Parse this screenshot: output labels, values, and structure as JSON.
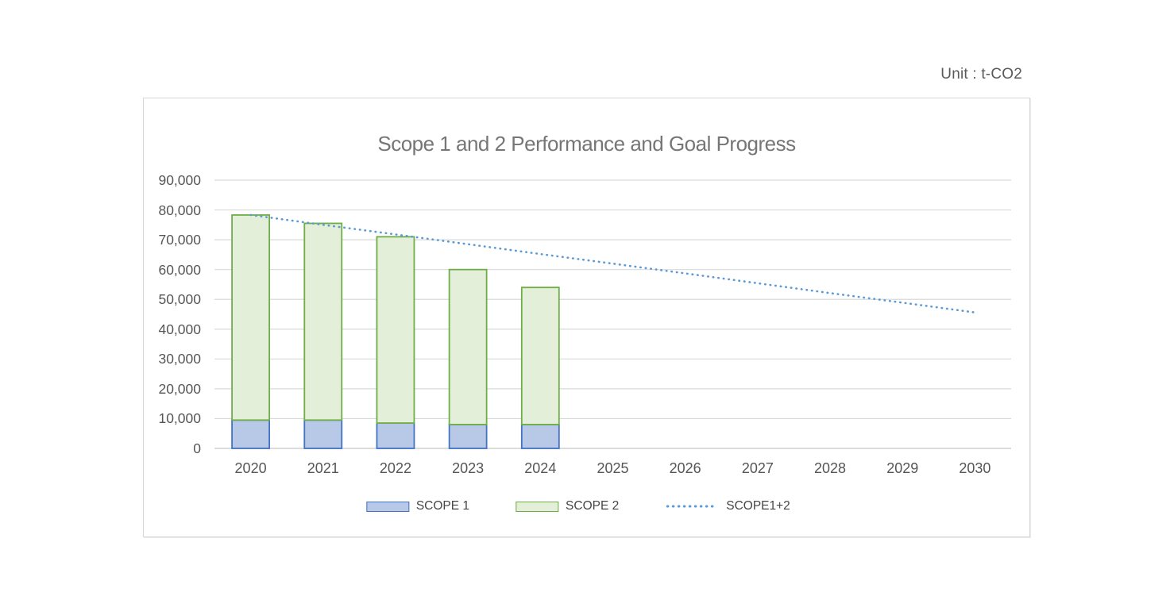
{
  "page": {
    "unit_label": "Unit : t-CO2"
  },
  "chart": {
    "title": "Scope 1 and 2 Performance and Goal Progress",
    "legend": [
      {
        "label": "SCOPE 1",
        "swatch": "blue-box"
      },
      {
        "label": "SCOPE 2",
        "swatch": "green-box"
      },
      {
        "label": "SCOPE1+2",
        "swatch": "blue-dotted-line"
      }
    ],
    "colors": {
      "scope1_fill": "#b7c9e6",
      "scope1_border": "#4472c4",
      "scope2_fill": "#e3efd9",
      "scope2_border": "#6fad47",
      "goal_line": "#5b9bd5",
      "gridline": "#d9d9d9",
      "axis_line": "#c6c6c6",
      "title_text": "#767676",
      "tick_text": "#565656",
      "frame_border": "#d7d7d7"
    }
  },
  "chart_data": {
    "type": "bar",
    "subtype": "stacked-bars-with-dotted-goal-line",
    "title": "Scope 1 and 2 Performance and Goal Progress",
    "unit": "t-CO2",
    "categories": [
      "2020",
      "2021",
      "2022",
      "2023",
      "2024",
      "2025",
      "2026",
      "2027",
      "2028",
      "2029",
      "2030"
    ],
    "series": [
      {
        "name": "SCOPE 1",
        "type": "bar",
        "stack": "total",
        "values": [
          9500,
          9500,
          8500,
          8000,
          8000,
          null,
          null,
          null,
          null,
          null,
          null
        ]
      },
      {
        "name": "SCOPE 2",
        "type": "bar",
        "stack": "total",
        "values": [
          68800,
          66000,
          62500,
          52000,
          46000,
          null,
          null,
          null,
          null,
          null,
          null
        ]
      },
      {
        "name": "SCOPE1+2",
        "type": "line",
        "style": "dotted",
        "values": [
          78300,
          75000,
          71800,
          68500,
          65200,
          62000,
          58700,
          55400,
          52100,
          48900,
          45600
        ]
      }
    ],
    "stacked_totals": [
      78300,
      75500,
      71000,
      60000,
      54000,
      null,
      null,
      null,
      null,
      null,
      null
    ],
    "xlabel": "",
    "ylabel": "",
    "ylim": [
      0,
      90000
    ],
    "y_tick_step": 10000,
    "y_tick_labels": [
      "0",
      "10,000",
      "20,000",
      "30,000",
      "40,000",
      "50,000",
      "60,000",
      "70,000",
      "80,000",
      "90,000"
    ],
    "grid": true,
    "legend_position": "bottom"
  }
}
